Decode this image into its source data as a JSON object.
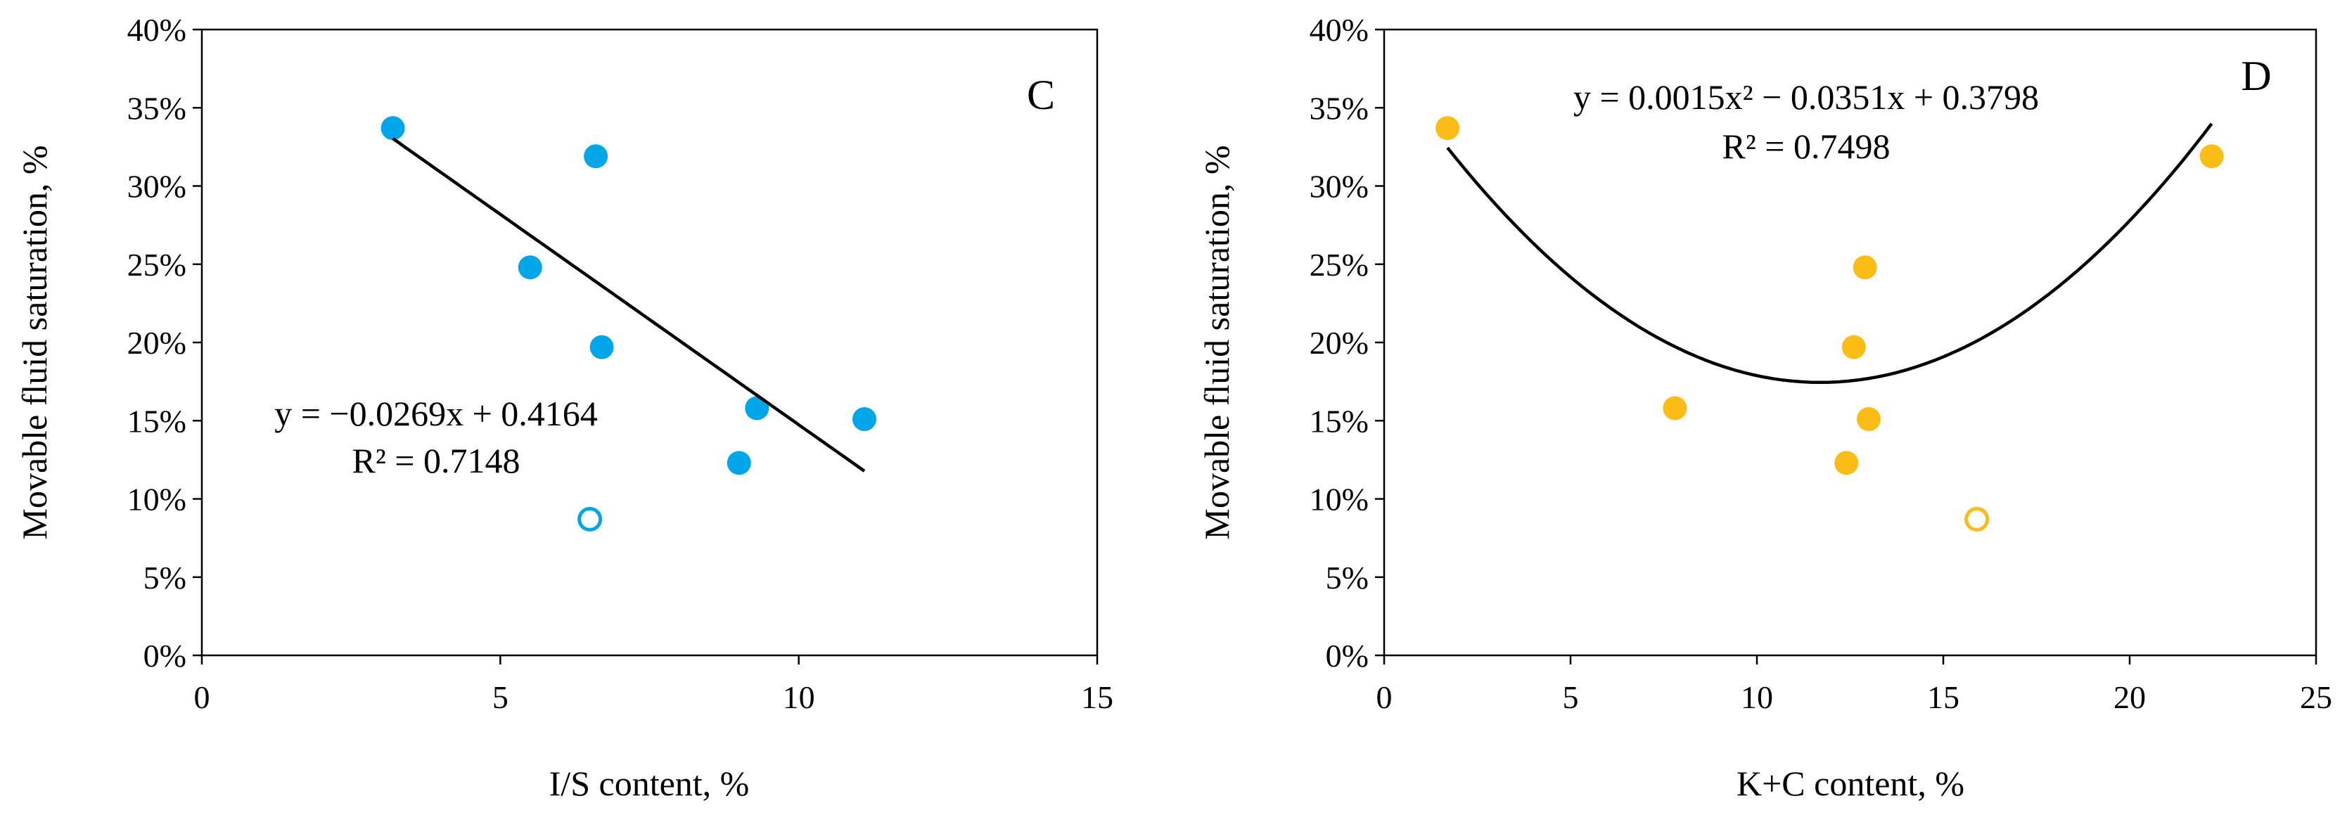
{
  "chart_data": [
    {
      "type": "scatter",
      "panel_label": "C",
      "xlabel": "I/S content, %",
      "ylabel": "Movable fluid saturation, %",
      "xlim": [
        0,
        15
      ],
      "ylim": [
        0,
        0.4
      ],
      "xticks": [
        0,
        5,
        10,
        15
      ],
      "xtick_labels": [
        "0",
        "5",
        "10",
        "15"
      ],
      "yticks": [
        0,
        0.05,
        0.1,
        0.15,
        0.2,
        0.25,
        0.3,
        0.35,
        0.4
      ],
      "ytick_labels": [
        "0%",
        "5%",
        "10%",
        "15%",
        "20%",
        "25%",
        "30%",
        "35%",
        "40%"
      ],
      "color": "#00a6e8",
      "grid": false,
      "points": [
        {
          "x": 3.2,
          "y": 0.337,
          "filled": true
        },
        {
          "x": 6.6,
          "y": 0.319,
          "filled": true
        },
        {
          "x": 5.5,
          "y": 0.248,
          "filled": true
        },
        {
          "x": 6.7,
          "y": 0.197,
          "filled": true
        },
        {
          "x": 9.3,
          "y": 0.158,
          "filled": true
        },
        {
          "x": 11.1,
          "y": 0.151,
          "filled": true
        },
        {
          "x": 9.0,
          "y": 0.123,
          "filled": true
        },
        {
          "x": 6.5,
          "y": 0.087,
          "filled": false
        }
      ],
      "trendline": {
        "kind": "linear",
        "coefficients": [
          -0.0269,
          0.4164
        ],
        "x_range": [
          3.2,
          11.1
        ]
      },
      "equation": "y = −0.0269x + 0.4164",
      "r_squared": "R² = 0.7148"
    },
    {
      "type": "scatter",
      "panel_label": "D",
      "xlabel": "K+C content, %",
      "ylabel": "Movable fluid saturation, %",
      "xlim": [
        0,
        25
      ],
      "ylim": [
        0,
        0.4
      ],
      "xticks": [
        0,
        5,
        10,
        15,
        20,
        25
      ],
      "xtick_labels": [
        "0",
        "5",
        "10",
        "15",
        "20",
        "25"
      ],
      "yticks": [
        0,
        0.05,
        0.1,
        0.15,
        0.2,
        0.25,
        0.3,
        0.35,
        0.4
      ],
      "ytick_labels": [
        "0%",
        "5%",
        "10%",
        "15%",
        "20%",
        "25%",
        "30%",
        "35%",
        "40%"
      ],
      "color": "#fbbc15",
      "grid": false,
      "points": [
        {
          "x": 1.7,
          "y": 0.337,
          "filled": true
        },
        {
          "x": 22.2,
          "y": 0.319,
          "filled": true
        },
        {
          "x": 12.9,
          "y": 0.248,
          "filled": true
        },
        {
          "x": 12.6,
          "y": 0.197,
          "filled": true
        },
        {
          "x": 7.8,
          "y": 0.158,
          "filled": true
        },
        {
          "x": 13.0,
          "y": 0.151,
          "filled": true
        },
        {
          "x": 12.4,
          "y": 0.123,
          "filled": true
        },
        {
          "x": 15.9,
          "y": 0.087,
          "filled": false
        }
      ],
      "trendline": {
        "kind": "quadratic",
        "coefficients": [
          0.0015,
          -0.0351,
          0.3798
        ],
        "x_range": [
          1.7,
          22.2
        ]
      },
      "equation": "y = 0.0015x² − 0.0351x + 0.3798",
      "r_squared": "R² = 0.7498"
    }
  ]
}
